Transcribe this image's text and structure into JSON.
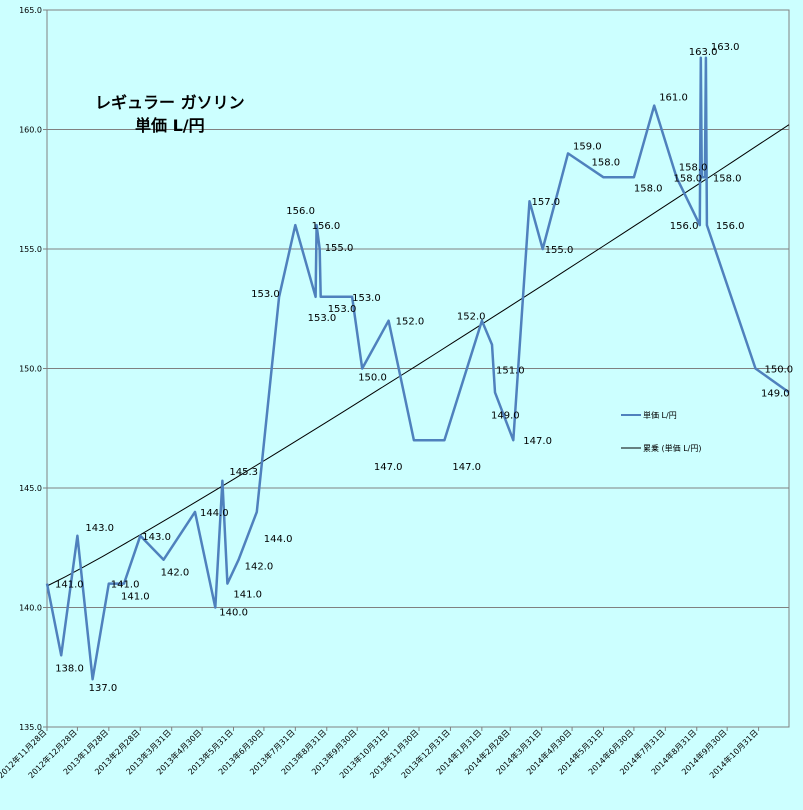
{
  "chart_data": {
    "type": "line",
    "title_lines": [
      "レギュラー ガソリン",
      "単価 L/円"
    ],
    "ylim": [
      135,
      165
    ],
    "y_ticks": [
      "135.0",
      "140.0",
      "145.0",
      "150.0",
      "155.0",
      "160.0",
      "165.0"
    ],
    "x_tick_labels": [
      "2012年11月28日",
      "2012年12月28日",
      "2013年1月28日",
      "2013年2月28日",
      "2013年3月31日",
      "2013年4月30日",
      "2013年5月31日",
      "2013年6月30日",
      "2013年7月31日",
      "2013年8月31日",
      "2013年9月30日",
      "2013年10月31日",
      "2013年11月30日",
      "2013年12月31日",
      "2014年1月31日",
      "2014年2月28日",
      "2014年3月31日",
      "2014年4月30日",
      "2014年5月31日",
      "2014年6月30日",
      "2014年7月31日",
      "2014年8月31日",
      "2014年9月30日",
      "2014年10月31日"
    ],
    "series": [
      {
        "name": "単価 L/円",
        "color": "#4f81bd",
        "points": [
          {
            "date": "2012-11-28",
            "value": 141.0,
            "label": "141.0"
          },
          {
            "date": "2012-12-12",
            "value": 138.0,
            "label": "138.0"
          },
          {
            "date": "2012-12-28",
            "value": 143.0,
            "label": "143.0"
          },
          {
            "date": "2013-01-12",
            "value": 137.0,
            "label": "137.0"
          },
          {
            "date": "2013-01-28",
            "value": 141.0,
            "label": "141.0"
          },
          {
            "date": "2013-02-12",
            "value": 141.0,
            "label": "141.0"
          },
          {
            "date": "2013-02-28",
            "value": 143.0,
            "label": "143.0"
          },
          {
            "date": "2013-03-23",
            "value": 142.0,
            "label": "142.0"
          },
          {
            "date": "2013-04-23",
            "value": 144.0,
            "label": "144.0"
          },
          {
            "date": "2013-05-13",
            "value": 140.0,
            "label": "140.0"
          },
          {
            "date": "2013-05-20",
            "value": 145.3,
            "label": "145.3"
          },
          {
            "date": "2013-05-25",
            "value": 141.0,
            "label": "141.0"
          },
          {
            "date": "2013-06-05",
            "value": 142.0,
            "label": "142.0"
          },
          {
            "date": "2013-06-23",
            "value": 144.0,
            "label": "144.0"
          },
          {
            "date": "2013-07-15",
            "value": 153.0,
            "label": "153.0"
          },
          {
            "date": "2013-07-31",
            "value": 156.0,
            "label": "156.0"
          },
          {
            "date": "2013-08-20",
            "value": 153.0,
            "label": "153.0"
          },
          {
            "date": "2013-08-21",
            "value": 156.0,
            "label": "156.0"
          },
          {
            "date": "2013-08-24",
            "value": 155.0,
            "label": "155.0"
          },
          {
            "date": "2013-08-25",
            "value": 153.0,
            "label": "153.0"
          },
          {
            "date": "2013-09-25",
            "value": 153.0,
            "label": "153.0"
          },
          {
            "date": "2013-10-05",
            "value": 150.0,
            "label": "150.0"
          },
          {
            "date": "2013-10-31",
            "value": 152.0,
            "label": "152.0"
          },
          {
            "date": "2013-11-25",
            "value": 147.0,
            "label": "147.0"
          },
          {
            "date": "2013-12-25",
            "value": 147.0,
            "label": "147.0"
          },
          {
            "date": "2014-01-31",
            "value": 152.0,
            "label": "152.0"
          },
          {
            "date": "2014-02-10",
            "value": 151.0,
            "label": "151.0"
          },
          {
            "date": "2014-02-13",
            "value": 149.0,
            "label": "149.0"
          },
          {
            "date": "2014-03-03",
            "value": 147.0,
            "label": "147.0"
          },
          {
            "date": "2014-03-19",
            "value": 157.0,
            "label": "157.0"
          },
          {
            "date": "2014-04-01",
            "value": 155.0,
            "label": "155.0"
          },
          {
            "date": "2014-04-26",
            "value": 159.0,
            "label": "159.0"
          },
          {
            "date": "2014-05-31",
            "value": 158.0,
            "label": "158.0"
          },
          {
            "date": "2014-06-30",
            "value": 158.0,
            "label": "158.0"
          },
          {
            "date": "2014-07-20",
            "value": 161.0,
            "label": "161.0"
          },
          {
            "date": "2014-08-11",
            "value": 158.0,
            "label": "158.0"
          },
          {
            "date": "2014-09-03",
            "value": 156.0,
            "label": "156.0"
          },
          {
            "date": "2014-09-04",
            "value": 163.0,
            "label": "163.0"
          },
          {
            "date": "2014-09-05",
            "value": 158.0,
            "label": "158.0"
          },
          {
            "date": "2014-09-08",
            "value": 158.0,
            "label": "158.0"
          },
          {
            "date": "2014-09-09",
            "value": 163.0,
            "label": "163.0"
          },
          {
            "date": "2014-09-10",
            "value": 156.0,
            "label": "156.0"
          },
          {
            "date": "2014-10-28",
            "value": 150.0,
            "label": "150.0"
          },
          {
            "date": "2014-11-30",
            "value": 149.0,
            "label": "149.0"
          }
        ]
      },
      {
        "name": "累乗 (単価 L/円)",
        "color": "#000000",
        "trend": {
          "start": {
            "date": "2012-11-28",
            "value": 140.9
          },
          "end": {
            "date": "2014-11-30",
            "value": 160.2
          },
          "curvature": 0.06
        }
      }
    ],
    "grid": true,
    "legend_position": "right"
  }
}
